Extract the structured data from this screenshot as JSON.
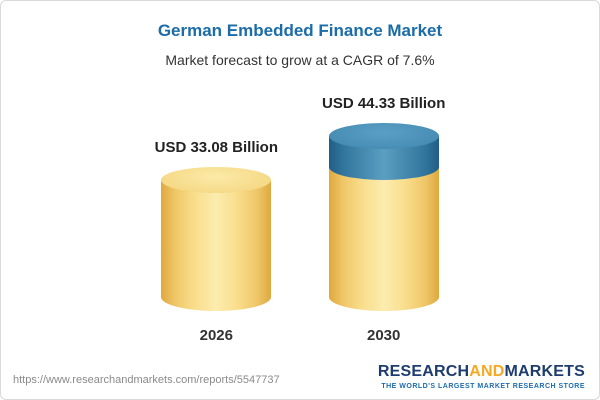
{
  "header": {
    "title": "German Embedded Finance Market",
    "subtitle": "Market forecast to grow at a CAGR of 7.6%"
  },
  "chart_data": {
    "type": "bar",
    "variant": "3d-cylinder",
    "categories": [
      "2026",
      "2030"
    ],
    "values": [
      33.08,
      44.33
    ],
    "value_labels": [
      "USD 33.08 Billion",
      "USD 44.33 Billion"
    ],
    "unit": "USD Billion",
    "title": "German Embedded Finance Market",
    "subtitle": "Market forecast to grow at a CAGR of 7.6%",
    "cagr": "7.6%",
    "ylim": [
      0,
      44.33
    ],
    "legend": "none",
    "grid": false,
    "colors": {
      "bar_gold": "#f0c75e",
      "growth_segment_blue": "#3c7fab",
      "title_blue": "#1b6ca8"
    },
    "notes": "2030 cylinder shows growth above the 2026 level as a blue top segment"
  },
  "footer": {
    "url": "https://www.researchandmarkets.com/reports/5547737",
    "logo": {
      "part1": "RESEARCH",
      "part2": "AND",
      "part3": "MARKETS",
      "tagline": "THE WORLD'S LARGEST MARKET RESEARCH STORE"
    }
  }
}
